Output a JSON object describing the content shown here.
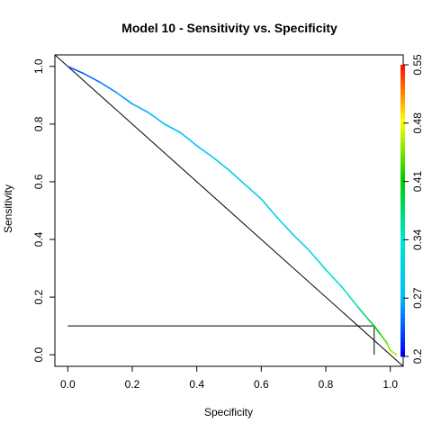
{
  "chart_data": {
    "type": "line",
    "title": "Model 10 - Sensitivity vs. Specificity",
    "xlabel": "Specificity",
    "ylabel": "Sensitivity",
    "xlim": [
      -0.04,
      1.04
    ],
    "ylim": [
      -0.04,
      1.04
    ],
    "x_ticks": [
      "0.0",
      "0.2",
      "0.4",
      "0.6",
      "0.8",
      "1.0"
    ],
    "y_ticks": [
      "0.0",
      "0.2",
      "0.4",
      "0.6",
      "0.8",
      "1.0"
    ],
    "grid": false,
    "colorbar": {
      "range": [
        0.2,
        0.55
      ],
      "ticks": [
        "0.2",
        "0.27",
        "0.34",
        "0.41",
        "0.48",
        "0.55"
      ],
      "colors": [
        "#0000ff",
        "#00bfff",
        "#00e5cc",
        "#00cc00",
        "#ffff00",
        "#ff0000"
      ]
    },
    "series": [
      {
        "values_x": [
          0.0,
          0.05,
          0.1,
          0.15,
          0.2,
          0.25,
          0.3,
          0.35,
          0.4,
          0.45,
          0.5,
          0.55,
          0.6,
          0.65,
          0.7,
          0.75,
          0.8,
          0.85,
          0.9,
          0.93,
          0.95,
          0.97,
          0.99,
          1.0,
          1.02
        ],
        "values_y": [
          1.0,
          0.975,
          0.945,
          0.91,
          0.87,
          0.84,
          0.8,
          0.77,
          0.725,
          0.685,
          0.64,
          0.59,
          0.54,
          0.475,
          0.415,
          0.36,
          0.295,
          0.235,
          0.165,
          0.125,
          0.1,
          0.07,
          0.04,
          0.015,
          0.0
        ],
        "color_values": [
          0.215,
          0.235,
          0.245,
          0.255,
          0.26,
          0.265,
          0.27,
          0.275,
          0.28,
          0.285,
          0.29,
          0.295,
          0.3,
          0.305,
          0.31,
          0.315,
          0.32,
          0.33,
          0.36,
          0.38,
          0.4,
          0.42,
          0.44,
          0.45,
          0.46
        ]
      }
    ],
    "reference_line": {
      "x": [
        -0.04,
        1.04
      ],
      "y": [
        1.04,
        -0.04
      ]
    },
    "cutoff_marker": {
      "x": 0.95,
      "y": 0.1,
      "x_start": 0.0,
      "y_start": 0.0
    }
  }
}
